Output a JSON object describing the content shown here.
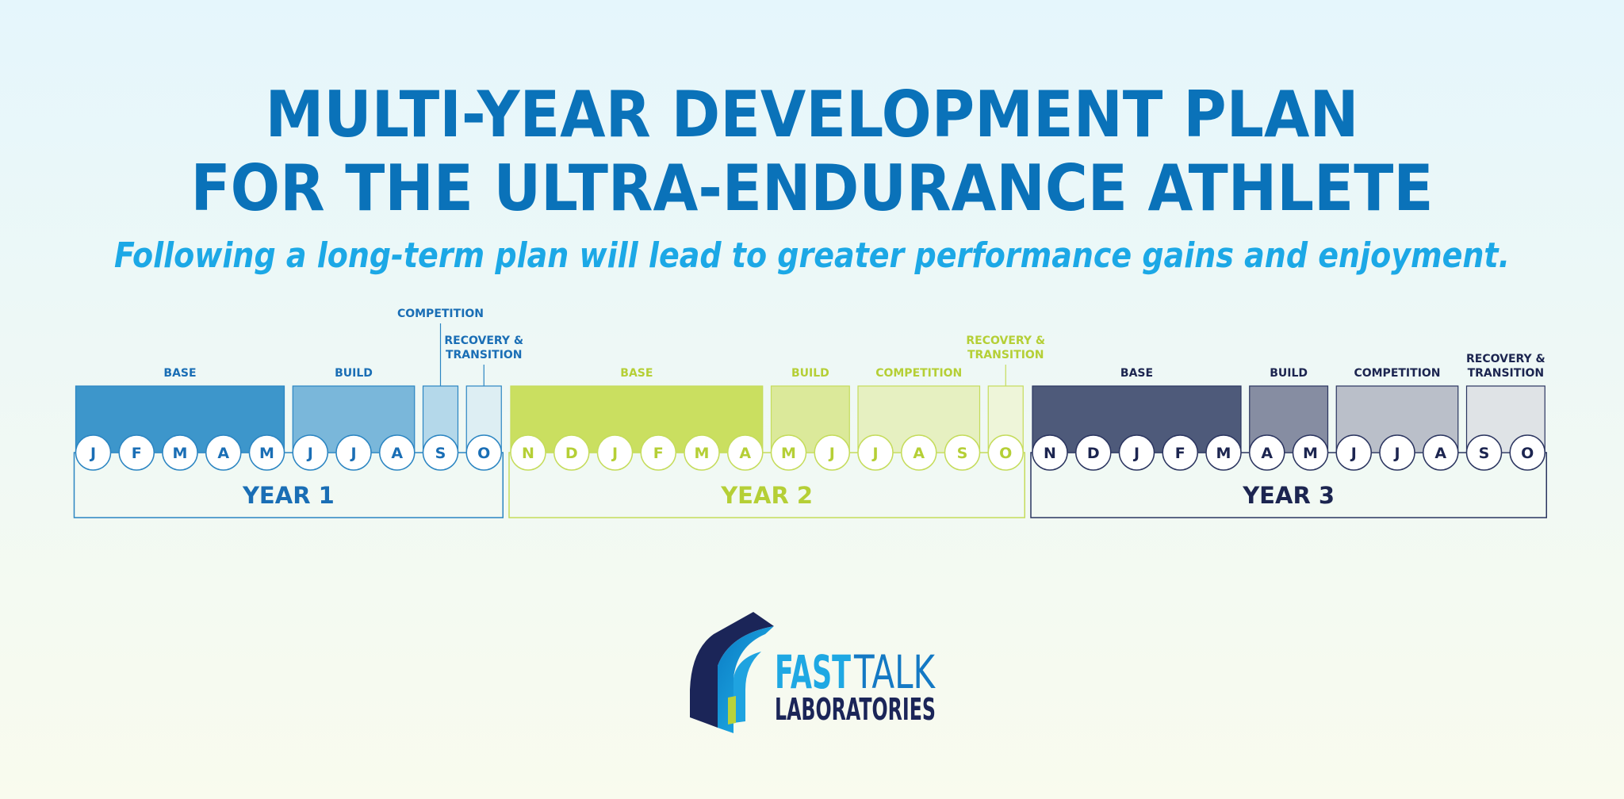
{
  "header": {
    "title_lines": [
      "MULTI-YEAR DEVELOPMENT PLAN",
      "FOR THE ULTRA-ENDURANCE ATHLETE"
    ],
    "subtitle": "Following a long-term plan will lead to greater performance gains and enjoyment."
  },
  "years": [
    {
      "label": "YEAR 1",
      "phases": [
        {
          "label": [
            "BASE"
          ],
          "months": [
            "J",
            "F",
            "M",
            "A",
            "M"
          ]
        },
        {
          "label": [
            "BUILD"
          ],
          "months": [
            "J",
            "J",
            "A"
          ]
        },
        {
          "label": [
            "COMPETITION"
          ],
          "months": [
            "S"
          ]
        },
        {
          "label": [
            "RECOVERY &",
            "TRANSITION"
          ],
          "months": [
            "O"
          ]
        }
      ]
    },
    {
      "label": "YEAR 2",
      "phases": [
        {
          "label": [
            "BASE"
          ],
          "months": [
            "N",
            "D",
            "J",
            "F",
            "M",
            "A"
          ]
        },
        {
          "label": [
            "BUILD"
          ],
          "months": [
            "M",
            "J"
          ]
        },
        {
          "label": [
            "COMPETITION"
          ],
          "months": [
            "J",
            "A",
            "S"
          ]
        },
        {
          "label": [
            "RECOVERY &",
            "TRANSITION"
          ],
          "months": [
            "O"
          ]
        }
      ]
    },
    {
      "label": "YEAR 3",
      "phases": [
        {
          "label": [
            "BASE"
          ],
          "months": [
            "N",
            "D",
            "J",
            "F",
            "M"
          ]
        },
        {
          "label": [
            "BUILD"
          ],
          "months": [
            "A",
            "M"
          ]
        },
        {
          "label": [
            "COMPETITION"
          ],
          "months": [
            "J",
            "J",
            "A"
          ]
        },
        {
          "label": [
            "RECOVERY &",
            "TRANSITION"
          ],
          "months": [
            "S",
            "O"
          ]
        }
      ]
    }
  ],
  "logo": {
    "word1": "FAST",
    "word2": "TALK",
    "word3": "LABORATORIES"
  }
}
